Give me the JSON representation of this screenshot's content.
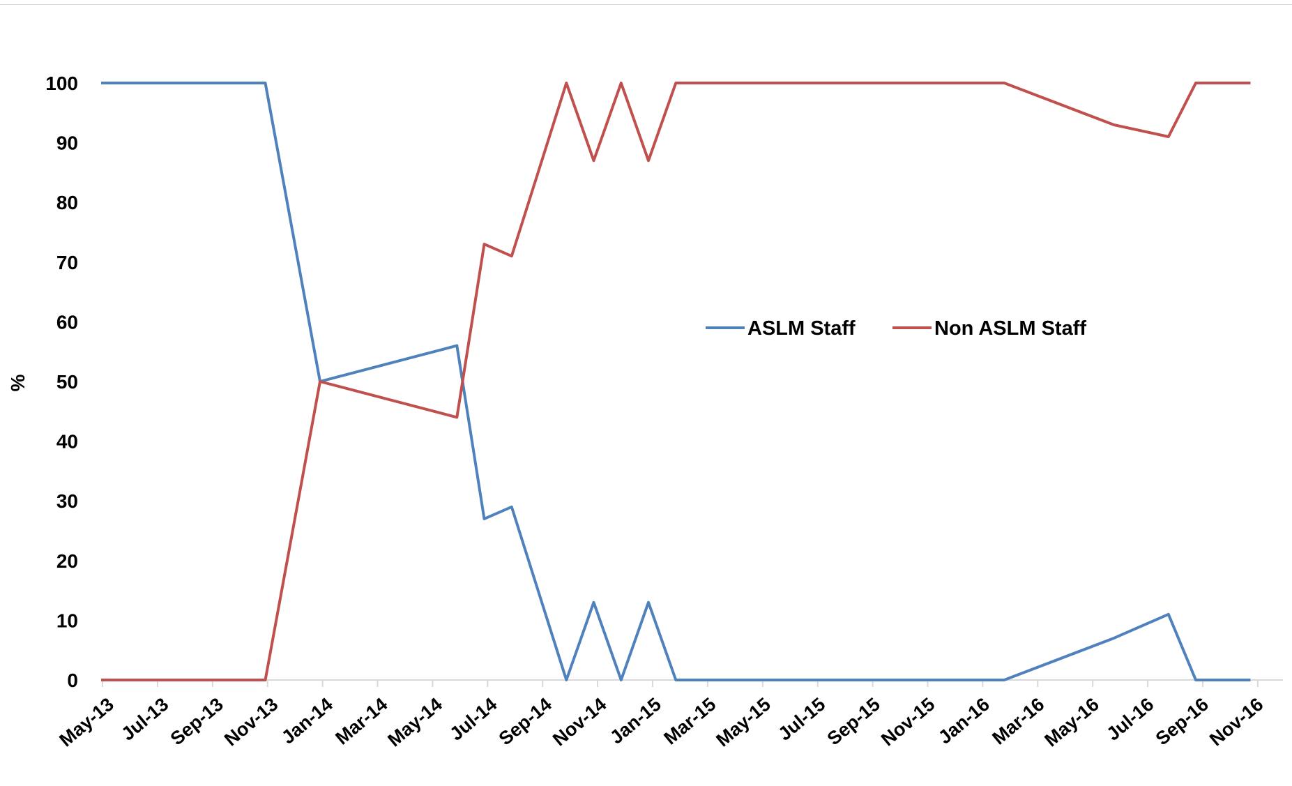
{
  "chart_data": {
    "type": "line",
    "ylabel": "%",
    "ylim": [
      0,
      100
    ],
    "yticks": [
      0,
      10,
      20,
      30,
      40,
      50,
      60,
      70,
      80,
      90,
      100
    ],
    "xtick_labels": [
      "May-13",
      "Jul-13",
      "Sep-13",
      "Nov-13",
      "Jan-14",
      "Mar-14",
      "May-14",
      "Jul-14",
      "Sep-14",
      "Nov-14",
      "Jan-15",
      "Mar-15",
      "May-15",
      "Jul-15",
      "Sep-15",
      "Nov-15",
      "Jan-16",
      "Mar-16",
      "May-16",
      "Jul-16",
      "Sep-16",
      "Nov-16"
    ],
    "x": [
      "2013-05",
      "2013-06",
      "2013-07",
      "2013-08",
      "2013-09",
      "2013-10",
      "2013-11",
      "2013-12",
      "2014-01",
      "2014-02",
      "2014-03",
      "2014-04",
      "2014-05",
      "2014-06",
      "2014-07",
      "2014-08",
      "2014-09",
      "2014-10",
      "2014-11",
      "2014-12",
      "2015-01",
      "2015-02",
      "2015-03",
      "2015-04",
      "2015-05",
      "2015-06",
      "2015-07",
      "2015-08",
      "2015-09",
      "2015-10",
      "2015-11",
      "2015-12",
      "2016-01",
      "2016-02",
      "2016-03",
      "2016-04",
      "2016-05",
      "2016-06",
      "2016-07",
      "2016-08",
      "2016-09",
      "2016-10",
      "2016-11",
      "2016-12"
    ],
    "legend_position": "center-right",
    "grid": false,
    "series": [
      {
        "name": "ASLM Staff",
        "color": "#4F81BD",
        "x": [
          "2013-05",
          "2013-11",
          "2014-01",
          "2014-06",
          "2014-07",
          "2014-08",
          "2014-10",
          "2014-11",
          "2014-12",
          "2015-01",
          "2015-02",
          "2016-02",
          "2016-06",
          "2016-08",
          "2016-09",
          "2016-11"
        ],
        "values": [
          100,
          100,
          50,
          56,
          27,
          29,
          0,
          13,
          0,
          13,
          0,
          0,
          7,
          11,
          0,
          0
        ]
      },
      {
        "name": "Non ASLM Staff",
        "color": "#C0504D",
        "x": [
          "2013-05",
          "2013-11",
          "2014-01",
          "2014-06",
          "2014-07",
          "2014-08",
          "2014-10",
          "2014-11",
          "2014-12",
          "2015-01",
          "2015-02",
          "2016-02",
          "2016-06",
          "2016-08",
          "2016-09",
          "2016-11"
        ],
        "values": [
          0,
          0,
          50,
          44,
          73,
          71,
          100,
          87,
          100,
          87,
          100,
          100,
          93,
          91,
          100,
          100
        ]
      }
    ]
  }
}
